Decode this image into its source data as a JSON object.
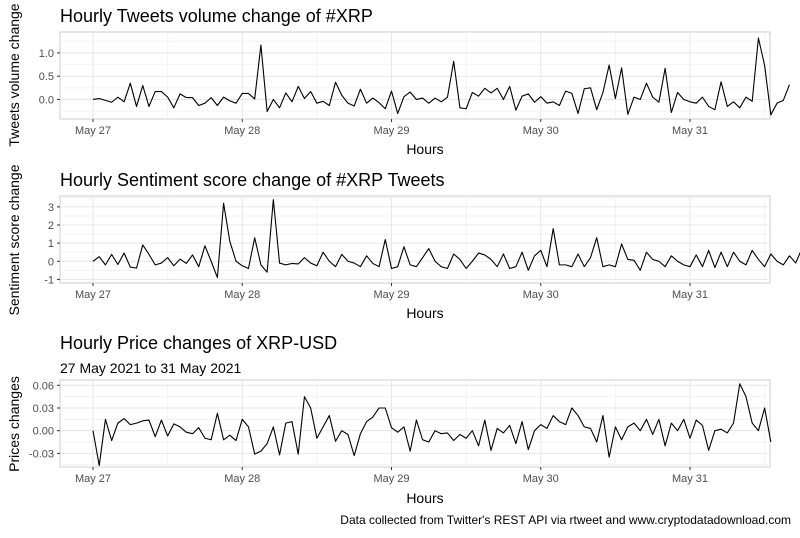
{
  "caption": "Data collected from Twitter's REST API via rtweet and www.cryptodatadownload.com",
  "chart_data": [
    {
      "type": "line",
      "title": "Hourly Tweets volume change of #XRP",
      "subtitle": "",
      "xlabel": "Hours",
      "ylabel": "Tweets volume change",
      "x_ticks": [
        "May 27",
        "May 28",
        "May 29",
        "May 30",
        "May 31"
      ],
      "y_ticks": [
        0.0,
        0.5,
        1.0
      ],
      "y_tick_labels": [
        "0.0",
        "0.5",
        "1.0"
      ],
      "ylim": [
        -0.42,
        1.45
      ],
      "grid": true,
      "x_start": "May 27 00:00",
      "x_step_hours": 1,
      "values": [
        0.0,
        0.02,
        -0.02,
        -0.06,
        0.05,
        -0.05,
        0.35,
        -0.15,
        0.3,
        -0.15,
        0.17,
        0.17,
        0.05,
        -0.18,
        0.12,
        0.04,
        0.04,
        -0.13,
        -0.08,
        0.04,
        -0.13,
        0.05,
        -0.03,
        -0.08,
        0.13,
        0.13,
        0.01,
        1.17,
        -0.26,
        0.0,
        -0.18,
        0.14,
        -0.05,
        0.28,
        0.02,
        0.17,
        -0.08,
        -0.04,
        -0.13,
        0.37,
        0.09,
        -0.08,
        -0.14,
        0.22,
        -0.08,
        0.03,
        -0.07,
        -0.2,
        0.18,
        -0.3,
        0.06,
        0.16,
        0.0,
        0.03,
        -0.08,
        0.03,
        -0.05,
        0.05,
        0.82,
        -0.18,
        -0.2,
        0.15,
        0.07,
        0.24,
        0.14,
        0.24,
        0.0,
        0.28,
        -0.23,
        0.07,
        0.12,
        -0.06,
        0.06,
        -0.08,
        -0.05,
        -0.13,
        0.18,
        0.13,
        -0.3,
        0.23,
        0.25,
        -0.22,
        0.15,
        0.74,
        0.02,
        0.68,
        -0.32,
        0.05,
        0.0,
        0.35,
        0.05,
        -0.06,
        0.67,
        -0.28,
        0.15,
        0.0,
        -0.05,
        -0.08,
        0.05,
        -0.15,
        -0.22,
        0.38,
        -0.15,
        -0.05,
        -0.18,
        0.05,
        -0.04,
        1.32,
        0.73,
        -0.33,
        -0.08,
        -0.02,
        0.32
      ]
    },
    {
      "type": "line",
      "title": "Hourly Sentiment score change of #XRP Tweets",
      "subtitle": "",
      "xlabel": "Hours",
      "ylabel": "Sentiment score change",
      "x_ticks": [
        "May 27",
        "May 28",
        "May 29",
        "May 30",
        "May 31"
      ],
      "y_ticks": [
        -1,
        0,
        1,
        2,
        3
      ],
      "y_tick_labels": [
        "-1",
        "0",
        "1",
        "2",
        "3"
      ],
      "ylim": [
        -1.2,
        3.6
      ],
      "grid": true,
      "x_start": "May 27 00:00",
      "x_step_hours": 1,
      "values": [
        0.0,
        0.25,
        -0.2,
        0.38,
        -0.18,
        0.45,
        -0.32,
        -0.38,
        0.9,
        0.38,
        -0.2,
        -0.1,
        0.2,
        -0.25,
        0.12,
        -0.12,
        0.35,
        -0.3,
        0.85,
        0.0,
        -0.9,
        3.2,
        1.1,
        0.0,
        -0.25,
        -0.4,
        1.3,
        -0.2,
        -0.6,
        3.4,
        -0.1,
        -0.2,
        -0.12,
        -0.15,
        0.2,
        -0.1,
        -0.25,
        0.5,
        0.0,
        -0.3,
        0.38,
        0.0,
        -0.1,
        -0.3,
        0.3,
        -0.12,
        -0.3,
        1.2,
        -0.4,
        -0.3,
        0.8,
        -0.2,
        -0.3,
        0.2,
        0.7,
        0.0,
        -0.3,
        -0.4,
        0.4,
        0.1,
        -0.4,
        0.0,
        0.45,
        0.35,
        0.1,
        -0.3,
        0.4,
        -0.4,
        -0.3,
        0.5,
        -0.5,
        0.3,
        0.6,
        -0.3,
        1.8,
        -0.2,
        -0.2,
        -0.3,
        0.4,
        -0.3,
        0.2,
        1.3,
        -0.3,
        -0.2,
        -0.3,
        0.95,
        0.1,
        0.05,
        -0.5,
        0.5,
        0.1,
        0.0,
        -0.3,
        0.3,
        0.0,
        -0.2,
        -0.3,
        0.35,
        -0.3,
        0.6,
        -0.35,
        0.5,
        -0.3,
        0.5,
        0.0,
        -0.2,
        0.6,
        0.1,
        -0.3,
        0.4,
        0.0,
        -0.2,
        0.3,
        -0.1,
        0.7,
        -0.25
      ]
    },
    {
      "type": "line",
      "title": "Hourly Price changes of XRP-USD",
      "subtitle": "27 May 2021 to 31 May 2021",
      "xlabel": "Hours",
      "ylabel": "Prices changes",
      "x_ticks": [
        "May 27",
        "May 28",
        "May 29",
        "May 30",
        "May 31"
      ],
      "y_ticks": [
        -0.03,
        0.0,
        0.03,
        0.06
      ],
      "y_tick_labels": [
        "-0.03",
        "0.00",
        "0.03",
        "0.06"
      ],
      "ylim": [
        -0.048,
        0.067
      ],
      "grid": true,
      "x_start": "May 27 00:00",
      "x_step_hours": 1,
      "values": [
        0.0,
        -0.046,
        0.015,
        -0.013,
        0.01,
        0.016,
        0.008,
        0.01,
        0.013,
        0.014,
        -0.008,
        0.014,
        -0.007,
        0.009,
        0.005,
        -0.002,
        -0.004,
        0.004,
        -0.01,
        -0.012,
        0.023,
        -0.012,
        -0.006,
        -0.013,
        0.015,
        0.005,
        -0.031,
        -0.027,
        -0.017,
        0.005,
        -0.032,
        0.01,
        0.012,
        -0.031,
        0.045,
        0.03,
        -0.01,
        0.005,
        0.02,
        -0.014,
        0.0,
        -0.005,
        -0.033,
        -0.004,
        0.012,
        0.018,
        0.03,
        0.03,
        0.004,
        -0.002,
        0.005,
        -0.027,
        0.014,
        -0.012,
        -0.015,
        0.0,
        -0.004,
        -0.003,
        -0.013,
        -0.005,
        -0.01,
        0.0,
        -0.02,
        0.014,
        -0.026,
        0.003,
        -0.003,
        0.007,
        -0.017,
        0.012,
        -0.025,
        0.0,
        0.008,
        0.003,
        0.02,
        0.012,
        0.008,
        0.03,
        0.02,
        0.005,
        0.003,
        -0.015,
        0.02,
        -0.035,
        0.005,
        -0.012,
        0.005,
        0.01,
        0.0,
        0.015,
        -0.005,
        0.015,
        -0.02,
        0.01,
        0.0,
        0.015,
        -0.01,
        0.014,
        0.007,
        -0.026,
        0.0,
        0.002,
        -0.003,
        0.01,
        0.062,
        0.045,
        0.01,
        0.0,
        0.03,
        -0.015
      ]
    }
  ]
}
